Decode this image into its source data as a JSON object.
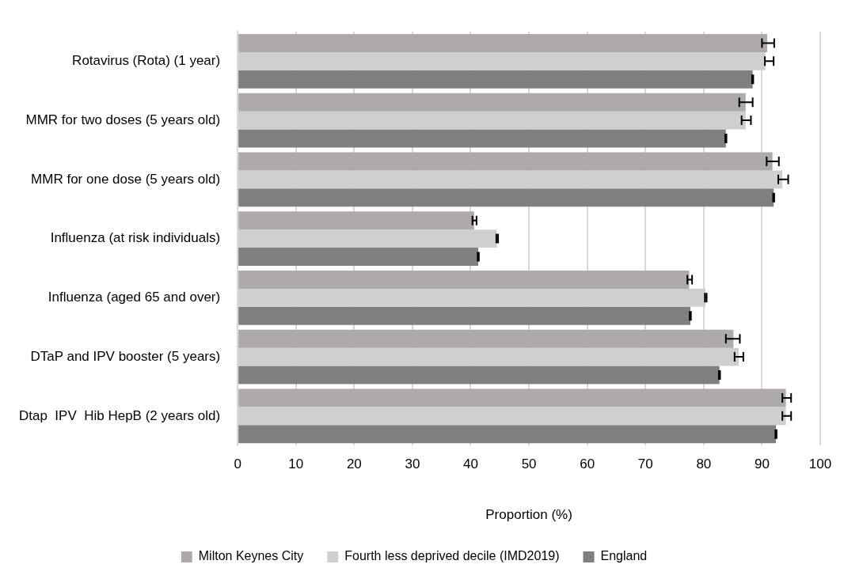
{
  "chart_data": {
    "type": "bar",
    "orientation": "horizontal",
    "xlabel": "Proportion (%)",
    "categories": [
      "Rotavirus (Rota) (1 year)",
      "MMR for two doses (5 years old)",
      "MMR for one dose (5 years old)",
      "Influenza (at risk individuals)",
      "Influenza (aged 65 and over)",
      "DTaP and IPV booster (5 years)",
      "Dtap  IPV  Hib HepB (2 years old)"
    ],
    "series": [
      {
        "name": "Milton Keynes City",
        "color": "#aeaaaa",
        "values": [
          90.9,
          87.2,
          91.8,
          40.6,
          77.5,
          85.1,
          94.1
        ],
        "errors": [
          [
            90.0,
            92.1
          ],
          [
            86.1,
            88.4
          ],
          [
            90.8,
            92.9
          ],
          [
            40.3,
            41.0
          ],
          [
            77.2,
            78.0
          ],
          [
            83.8,
            86.2
          ],
          [
            93.5,
            95.0
          ]
        ]
      },
      {
        "name": "Fourth less deprived decile (IMD2019)",
        "color": "#d0cece",
        "values": [
          90.6,
          87.2,
          93.5,
          44.5,
          80.3,
          86.0,
          94.1
        ],
        "errors": [
          [
            90.5,
            92.0
          ],
          [
            86.5,
            88.1
          ],
          [
            92.8,
            94.5
          ],
          [
            44.4,
            44.7
          ],
          [
            80.2,
            80.5
          ],
          [
            85.3,
            86.8
          ],
          [
            93.5,
            95.0
          ]
        ]
      },
      {
        "name": "England",
        "color": "#7f7f7f",
        "values": [
          88.4,
          83.8,
          92.0,
          41.3,
          77.7,
          82.7,
          92.4
        ],
        "errors": [
          0.1,
          0.1,
          0.1,
          0.1,
          0.1,
          0.1,
          0.1
        ]
      }
    ],
    "xlim": [
      0,
      100
    ],
    "xticks": [
      0,
      10,
      20,
      30,
      40,
      50,
      60,
      70,
      80,
      90,
      100
    ],
    "grid": "x",
    "legend": "bottom"
  }
}
